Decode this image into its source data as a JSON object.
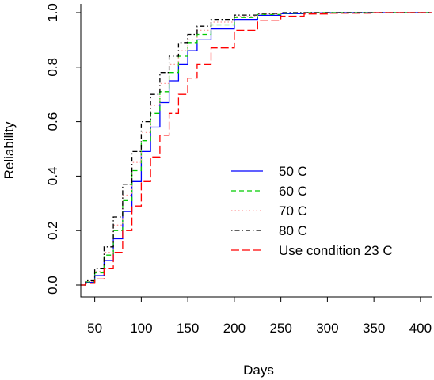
{
  "chart_data": {
    "type": "line",
    "title": "",
    "xlabel": "Days",
    "ylabel": "Reliability",
    "xlim": [
      35,
      412
    ],
    "ylim": [
      0,
      1
    ],
    "xticks": [
      50,
      100,
      150,
      200,
      250,
      300,
      350,
      400
    ],
    "yticks": [
      0.0,
      0.2,
      0.4,
      0.6,
      0.8,
      1.0
    ],
    "ytick_labels": [
      "0.0",
      "0.2",
      "0.4",
      "0.6",
      "0.8",
      "1.0"
    ],
    "grid": false,
    "legend_position": "center-right",
    "series": [
      {
        "name": "50 C",
        "color": "#0000ff",
        "dash": "solid",
        "x": [
          35,
          40,
          50,
          60,
          70,
          80,
          90,
          100,
          110,
          120,
          130,
          140,
          150,
          160,
          175,
          200,
          225,
          250,
          275,
          300,
          350,
          412
        ],
        "y": [
          0.0,
          0.01,
          0.035,
          0.09,
          0.17,
          0.27,
          0.38,
          0.49,
          0.58,
          0.67,
          0.75,
          0.81,
          0.86,
          0.9,
          0.94,
          0.975,
          0.99,
          0.996,
          0.999,
          1.0,
          1.0,
          1.0
        ]
      },
      {
        "name": "60 C",
        "color": "#00cc00",
        "dash": "dashed",
        "x": [
          35,
          40,
          50,
          60,
          70,
          80,
          90,
          100,
          110,
          120,
          130,
          140,
          150,
          160,
          175,
          200,
          225,
          250,
          275,
          300,
          350,
          412
        ],
        "y": [
          0.0,
          0.012,
          0.045,
          0.11,
          0.2,
          0.31,
          0.42,
          0.53,
          0.63,
          0.71,
          0.78,
          0.84,
          0.89,
          0.92,
          0.955,
          0.982,
          0.993,
          0.998,
          1.0,
          1.0,
          1.0,
          1.0
        ]
      },
      {
        "name": "70 C",
        "color": "#ff9999",
        "dash": "dotted",
        "x": [
          35,
          40,
          50,
          60,
          70,
          80,
          90,
          100,
          110,
          120,
          130,
          140,
          150,
          160,
          175,
          200,
          225,
          250,
          275,
          300,
          350,
          412
        ],
        "y": [
          0.0,
          0.014,
          0.05,
          0.12,
          0.22,
          0.33,
          0.45,
          0.56,
          0.66,
          0.74,
          0.81,
          0.86,
          0.9,
          0.935,
          0.965,
          0.986,
          0.995,
          0.999,
          1.0,
          1.0,
          1.0,
          1.0
        ]
      },
      {
        "name": "80 C",
        "color": "#000000",
        "dash": "dotdash",
        "x": [
          35,
          40,
          50,
          60,
          70,
          80,
          90,
          100,
          110,
          120,
          130,
          140,
          150,
          160,
          175,
          200,
          225,
          250,
          275,
          300,
          350,
          412
        ],
        "y": [
          0.0,
          0.016,
          0.06,
          0.14,
          0.25,
          0.37,
          0.49,
          0.6,
          0.7,
          0.78,
          0.84,
          0.89,
          0.92,
          0.95,
          0.975,
          0.991,
          0.997,
          1.0,
          1.0,
          1.0,
          1.0,
          1.0
        ]
      },
      {
        "name": "Use condition 23 C",
        "color": "#ff0000",
        "dash": "longdash",
        "x": [
          35,
          40,
          50,
          60,
          70,
          80,
          90,
          100,
          110,
          120,
          130,
          140,
          150,
          160,
          175,
          200,
          225,
          250,
          275,
          300,
          350,
          412
        ],
        "y": [
          0.0,
          0.006,
          0.022,
          0.06,
          0.12,
          0.2,
          0.29,
          0.38,
          0.47,
          0.55,
          0.63,
          0.7,
          0.76,
          0.81,
          0.87,
          0.935,
          0.97,
          0.987,
          0.995,
          0.998,
          1.0,
          1.0
        ]
      }
    ]
  }
}
